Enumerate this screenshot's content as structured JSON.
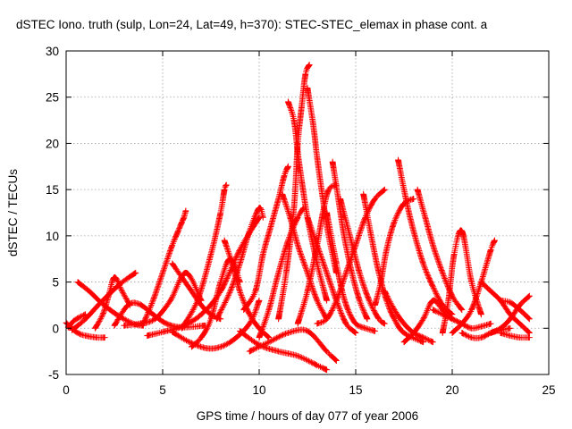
{
  "chart_data": {
    "type": "scatter",
    "title": "dSTEC Iono. truth (sulp, Lon=24, Lat=49, h=370): STEC-STEC_elemax in phase cont. a",
    "xlabel": "GPS time / hours of day 077 of year 2006",
    "ylabel": "dSTEC  / TECUs",
    "xlim": [
      0,
      25
    ],
    "ylim": [
      -5,
      30
    ],
    "xticks": [
      0,
      5,
      10,
      15,
      20,
      25
    ],
    "yticks": [
      -5,
      0,
      5,
      10,
      15,
      20,
      25,
      30
    ],
    "grid": true,
    "marker": "+",
    "color": "#ff0000",
    "series": [
      {
        "x": [
          0.0,
          0.3,
          0.6,
          1.0,
          1.6,
          2.0
        ],
        "y": [
          0.6,
          0.0,
          -0.5,
          -0.8,
          -1.0,
          -1.0
        ]
      },
      {
        "x": [
          0.1,
          0.4,
          0.7,
          1.0
        ],
        "y": [
          0.1,
          0.8,
          1.2,
          1.5
        ]
      },
      {
        "x": [
          0.6,
          1.2,
          1.8,
          2.4,
          3.0,
          3.6,
          4.0
        ],
        "y": [
          5.0,
          4.0,
          2.8,
          1.8,
          1.0,
          0.4,
          0.3
        ]
      },
      {
        "x": [
          1.5,
          1.9,
          2.2,
          2.5,
          2.9,
          3.3
        ],
        "y": [
          0.0,
          1.5,
          3.5,
          5.5,
          4.0,
          2.5
        ]
      },
      {
        "x": [
          0.3,
          1.0,
          1.8,
          2.8,
          3.6
        ],
        "y": [
          -0.2,
          1.0,
          2.8,
          4.8,
          6.0
        ]
      },
      {
        "x": [
          2.5,
          3.2,
          3.8,
          4.5,
          5.2,
          6.0,
          7.2
        ],
        "y": [
          0.3,
          2.5,
          2.6,
          1.5,
          0.5,
          0.1,
          0.3
        ]
      },
      {
        "x": [
          3.0,
          3.8,
          4.6,
          5.4,
          6.2,
          7.0
        ],
        "y": [
          0.3,
          0.5,
          1.0,
          3.0,
          6.0,
          3.0
        ]
      },
      {
        "x": [
          4.0,
          4.5,
          5.0,
          5.5,
          5.8,
          6.0,
          6.1,
          6.2
        ],
        "y": [
          0.5,
          3.0,
          6.0,
          9.0,
          10.5,
          11.5,
          12.0,
          12.7
        ]
      },
      {
        "x": [
          4.2,
          5.0,
          6.0,
          7.0,
          8.0,
          9.0,
          10.0
        ],
        "y": [
          -0.8,
          -0.4,
          0.2,
          1.5,
          4.0,
          8.5,
          12.0
        ]
      },
      {
        "x": [
          6.5,
          7.0,
          7.5,
          8.0,
          8.5,
          9.0
        ],
        "y": [
          -2.0,
          -1.0,
          1.0,
          5.0,
          7.5,
          5.0
        ]
      },
      {
        "x": [
          5.5,
          6.0,
          6.5,
          7.0,
          7.5,
          8.0
        ],
        "y": [
          7.0,
          5.5,
          4.0,
          2.5,
          1.5,
          1.0
        ]
      },
      {
        "x": [
          6.0,
          6.8,
          7.5,
          8.0,
          8.2,
          8.3
        ],
        "y": [
          0.0,
          3.0,
          8.0,
          12.5,
          15.0,
          15.5
        ]
      },
      {
        "x": [
          5.5,
          6.5,
          7.5,
          8.5,
          9.5,
          10.0
        ],
        "y": [
          -0.4,
          -1.6,
          -2.2,
          -1.5,
          0.5,
          3.0
        ]
      },
      {
        "x": [
          8.2,
          8.6,
          9.0,
          9.5,
          10.0,
          10.5
        ],
        "y": [
          9.5,
          7.0,
          4.0,
          1.5,
          0.0,
          -1.0
        ]
      },
      {
        "x": [
          7.8,
          8.5,
          9.0,
          9.5,
          10.0,
          10.2
        ],
        "y": [
          1.0,
          4.0,
          7.0,
          10.5,
          13.0,
          12.0
        ]
      },
      {
        "x": [
          9.0,
          10.0,
          11.0,
          12.0,
          13.0,
          13.5
        ],
        "y": [
          -0.3,
          -1.8,
          -2.5,
          -3.0,
          -4.0,
          -4.5
        ]
      },
      {
        "x": [
          9.5,
          10.5,
          11.5,
          12.5,
          13.5,
          14.0
        ],
        "y": [
          -2.5,
          -1.5,
          -0.5,
          -0.3,
          -2.5,
          -3.5
        ]
      },
      {
        "x": [
          9.2,
          9.8,
          10.2,
          10.6,
          11.0,
          11.3,
          11.5
        ],
        "y": [
          2.0,
          4.0,
          8.0,
          11.0,
          14.0,
          16.5,
          17.5
        ]
      },
      {
        "x": [
          10.0,
          10.5,
          11.0,
          11.5,
          12.0,
          12.3
        ],
        "y": [
          -1.0,
          2.0,
          6.0,
          9.5,
          12.0,
          13.0
        ]
      },
      {
        "x": [
          11.0,
          11.4,
          11.8,
          12.0,
          12.2,
          12.4,
          12.6
        ],
        "y": [
          1.0,
          6.0,
          13.0,
          20.0,
          24.0,
          27.5,
          28.5
        ]
      },
      {
        "x": [
          11.5,
          11.8,
          12.0,
          12.2,
          12.5,
          13.0,
          13.5
        ],
        "y": [
          24.5,
          22.5,
          19.0,
          16.0,
          12.0,
          7.0,
          3.0
        ]
      },
      {
        "x": [
          12.5,
          12.8,
          13.0,
          13.3,
          13.6,
          14.0
        ],
        "y": [
          26.0,
          22.0,
          18.5,
          14.0,
          10.0,
          6.0
        ]
      },
      {
        "x": [
          11.2,
          11.6,
          12.0,
          12.5,
          13.0,
          13.5
        ],
        "y": [
          14.5,
          12.0,
          9.0,
          6.0,
          3.0,
          1.0
        ]
      },
      {
        "x": [
          12.0,
          12.5,
          13.0,
          13.3,
          13.6,
          14.0
        ],
        "y": [
          0.5,
          4.0,
          9.0,
          12.5,
          15.0,
          15.5
        ]
      },
      {
        "x": [
          12.5,
          13.0,
          13.5,
          14.0,
          14.5,
          15.0
        ],
        "y": [
          12.0,
          9.0,
          6.0,
          3.0,
          0.5,
          -0.5
        ]
      },
      {
        "x": [
          13.5,
          14.0,
          14.3,
          14.6,
          15.0,
          15.5,
          16.0
        ],
        "y": [
          12.5,
          7.0,
          4.0,
          2.0,
          0.5,
          0.0,
          -0.3
        ]
      },
      {
        "x": [
          13.8,
          14.1,
          14.4,
          14.8,
          15.2,
          15.6
        ],
        "y": [
          18.0,
          14.0,
          10.0,
          6.0,
          3.0,
          1.0
        ]
      },
      {
        "x": [
          13.0,
          13.5,
          14.0,
          14.5,
          15.0,
          15.5,
          16.0,
          16.5
        ],
        "y": [
          0.5,
          1.0,
          3.0,
          6.0,
          9.0,
          12.0,
          14.0,
          15.0
        ]
      },
      {
        "x": [
          14.2,
          14.7,
          15.2,
          15.7,
          16.2,
          16.5
        ],
        "y": [
          14.0,
          10.0,
          6.0,
          3.0,
          1.0,
          0.5
        ]
      },
      {
        "x": [
          15.4,
          15.8,
          16.2,
          16.6,
          17.0,
          17.5,
          18.5
        ],
        "y": [
          14.5,
          10.0,
          6.0,
          3.0,
          1.0,
          -0.5,
          -1.5
        ]
      },
      {
        "x": [
          16.0,
          16.3,
          16.6,
          17.0,
          17.5,
          18.0
        ],
        "y": [
          2.5,
          5.0,
          8.5,
          11.5,
          13.5,
          14.0
        ]
      },
      {
        "x": [
          16.5,
          17.0,
          17.5,
          18.0,
          18.5,
          19.0
        ],
        "y": [
          4.0,
          2.0,
          0.5,
          -0.5,
          -1.0,
          -1.5
        ]
      },
      {
        "x": [
          17.2,
          17.6,
          18.0,
          18.5,
          19.0,
          19.5,
          20.0
        ],
        "y": [
          18.2,
          14.0,
          10.5,
          7.0,
          4.5,
          2.5,
          1.5
        ]
      },
      {
        "x": [
          18.2,
          18.6,
          19.0,
          19.5,
          20.0,
          20.5
        ],
        "y": [
          15.0,
          12.0,
          9.0,
          6.0,
          3.5,
          2.0
        ]
      },
      {
        "x": [
          17.5,
          18.0,
          18.5,
          19.0,
          19.5,
          20.0
        ],
        "y": [
          -1.5,
          -0.5,
          1.0,
          3.0,
          2.0,
          1.0
        ]
      },
      {
        "x": [
          19.5,
          19.8,
          20.1,
          20.5,
          21.0,
          21.5
        ],
        "y": [
          -0.5,
          3.0,
          8.0,
          10.5,
          5.0,
          1.5
        ]
      },
      {
        "x": [
          19.0,
          19.5,
          20.0,
          20.5,
          21.0,
          21.5,
          22.0
        ],
        "y": [
          2.0,
          1.5,
          1.0,
          0.5,
          0.0,
          0.2,
          0.5
        ]
      },
      {
        "x": [
          20.0,
          20.5,
          21.0,
          21.5,
          22.0,
          22.2
        ],
        "y": [
          -0.5,
          0.5,
          2.0,
          5.0,
          8.5,
          9.5
        ]
      },
      {
        "x": [
          20.5,
          21.0,
          21.5,
          22.0,
          22.5,
          23.0
        ],
        "y": [
          -0.5,
          -1.0,
          -1.0,
          -0.5,
          -0.2,
          0.0
        ]
      },
      {
        "x": [
          21.5,
          22.0,
          22.5,
          23.0,
          23.5,
          24.0
        ],
        "y": [
          5.0,
          4.0,
          3.0,
          1.5,
          0.5,
          -0.5
        ]
      },
      {
        "x": [
          22.0,
          22.5,
          23.0,
          23.5,
          24.0
        ],
        "y": [
          -0.5,
          0.0,
          1.0,
          2.5,
          3.5
        ]
      },
      {
        "x": [
          22.5,
          23.0,
          23.5,
          24.0
        ],
        "y": [
          3.0,
          2.8,
          2.0,
          1.0
        ]
      },
      {
        "x": [
          22.5,
          23.0,
          23.5,
          24.0
        ],
        "y": [
          -0.5,
          -0.8,
          -1.0,
          -1.0
        ]
      }
    ]
  }
}
